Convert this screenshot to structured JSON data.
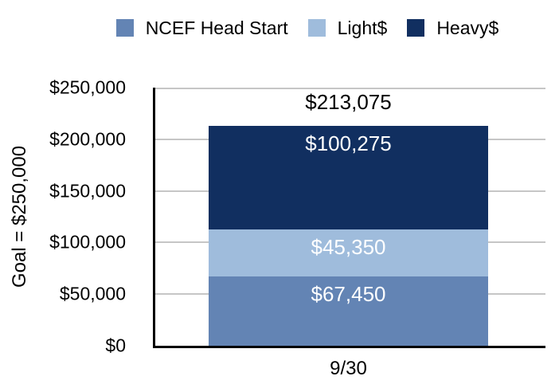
{
  "chart_data": {
    "type": "bar",
    "stacked": true,
    "title": "",
    "xlabel": "",
    "ylabel": "Goal = $250,000",
    "categories": [
      "9/30"
    ],
    "series": [
      {
        "name": "NCEF Head Start",
        "values": [
          67450
        ],
        "value_label": "$67,450",
        "color": "#6384b4"
      },
      {
        "name": "Light$",
        "values": [
          45350
        ],
        "value_label": "$45,350",
        "color": "#9fbcdc"
      },
      {
        "name": "Heavy$",
        "values": [
          100275
        ],
        "value_label": "$100,275",
        "color": "#112f60"
      }
    ],
    "total": 213075,
    "total_label": "$213,075",
    "ylim": [
      0,
      250000
    ],
    "ytick_interval": 50000,
    "yticks": [
      {
        "value": 250000,
        "label": "$250,000"
      },
      {
        "value": 200000,
        "label": "$200,000"
      },
      {
        "value": 150000,
        "label": "$150,000"
      },
      {
        "value": 100000,
        "label": "$100,000"
      },
      {
        "value": 50000,
        "label": "$50,000"
      },
      {
        "value": 0,
        "label": "$0"
      }
    ],
    "grid": true,
    "legend_position": "top",
    "colors": {
      "axis": "#000000",
      "gridline": "#c6c6c6",
      "bar_label_text": "#ffffff",
      "total_label_text": "#000000"
    }
  }
}
